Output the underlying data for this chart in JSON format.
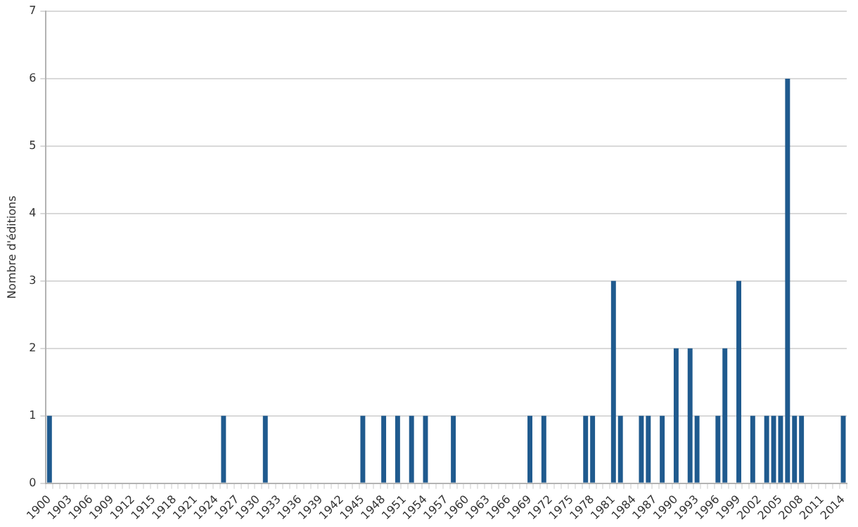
{
  "chart_data": {
    "type": "bar",
    "ylabel": "Nombre d'éditions",
    "categories": [
      "1900",
      null,
      null,
      "1903",
      null,
      null,
      "1906",
      null,
      null,
      "1909",
      null,
      null,
      "1912",
      null,
      null,
      "1915",
      null,
      null,
      "1918",
      null,
      null,
      "1921",
      null,
      null,
      "1924",
      null,
      null,
      "1927",
      null,
      null,
      "1930",
      null,
      null,
      "1933",
      null,
      null,
      "1936",
      null,
      null,
      "1939",
      null,
      null,
      "1942",
      null,
      null,
      "1945",
      null,
      null,
      "1948",
      null,
      null,
      "1951",
      null,
      null,
      "1954",
      null,
      null,
      "1957",
      null,
      null,
      "1960",
      null,
      null,
      "1963",
      null,
      null,
      "1966",
      null,
      null,
      "1969",
      null,
      null,
      "1972",
      null,
      null,
      "1975",
      null,
      null,
      "1978",
      null,
      null,
      "1981",
      null,
      null,
      "1984",
      null,
      null,
      "1987",
      null,
      null,
      "1990",
      null,
      null,
      "1993",
      null,
      null,
      "1996",
      null,
      null,
      "1999",
      null,
      null,
      "2002",
      null,
      null,
      "2005",
      null,
      null,
      "2008",
      null,
      null,
      "2011",
      null,
      null,
      "2014"
    ],
    "values": [
      1,
      0,
      0,
      0,
      0,
      0,
      0,
      0,
      0,
      0,
      0,
      0,
      0,
      0,
      0,
      0,
      0,
      0,
      0,
      0,
      0,
      0,
      0,
      0,
      0,
      1,
      0,
      0,
      0,
      0,
      0,
      1,
      0,
      0,
      0,
      0,
      0,
      0,
      0,
      0,
      0,
      0,
      0,
      0,
      0,
      1,
      0,
      0,
      1,
      0,
      1,
      0,
      1,
      0,
      1,
      0,
      0,
      0,
      1,
      0,
      0,
      0,
      0,
      0,
      0,
      0,
      0,
      0,
      0,
      1,
      0,
      1,
      0,
      0,
      0,
      0,
      0,
      1,
      1,
      0,
      0,
      3,
      1,
      0,
      0,
      1,
      1,
      0,
      1,
      0,
      2,
      0,
      2,
      1,
      0,
      0,
      1,
      2,
      0,
      3,
      0,
      1,
      0,
      1,
      1,
      1,
      6,
      1,
      1,
      0,
      0,
      0,
      0,
      0,
      1
    ],
    "color": "#1f5a8e",
    "ylim": [
      0,
      7
    ],
    "yticks": [
      0,
      1,
      2,
      3,
      4,
      5,
      6,
      7
    ],
    "grid": "y",
    "legend": false
  }
}
